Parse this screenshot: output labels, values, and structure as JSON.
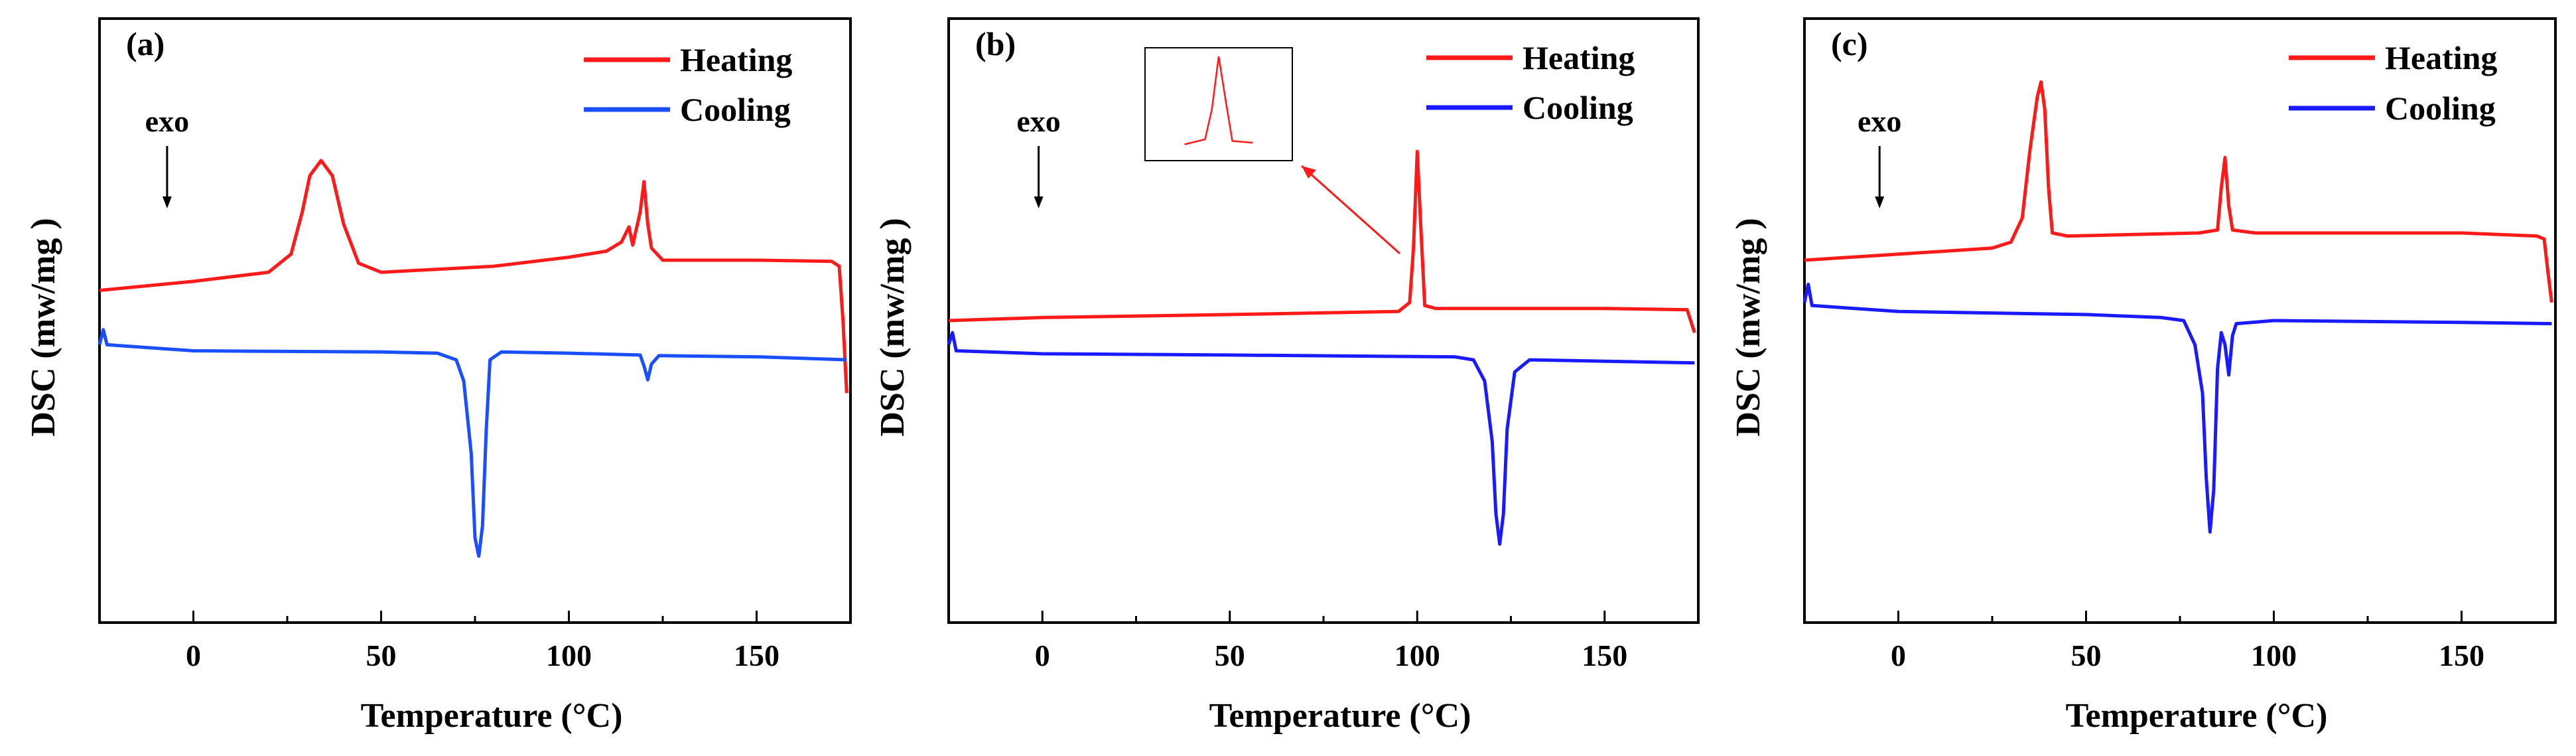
{
  "chart_data": [
    {
      "type": "line",
      "panel_label": "(a)",
      "xlabel": "Temperature (°C)",
      "ylabel": "DSC (mw/mg )",
      "xlim": [
        -25,
        175
      ],
      "ylim": [
        0,
        100
      ],
      "xticks": [
        0,
        50,
        100,
        150
      ],
      "annotation": "exo",
      "annotation_x": -7,
      "legend_position": "top-right",
      "colors": {
        "heating": "#ff1a1a",
        "cooling": "#1a4fff"
      },
      "series": [
        {
          "name": "Heating",
          "points": [
            [
              -25,
              55.0
            ],
            [
              0,
              56.5
            ],
            [
              20,
              58.0
            ],
            [
              26,
              61.0
            ],
            [
              29,
              68.0
            ],
            [
              31,
              74.0
            ],
            [
              34,
              76.5
            ],
            [
              37,
              74.0
            ],
            [
              40,
              66.0
            ],
            [
              44,
              59.5
            ],
            [
              50,
              58.0
            ],
            [
              80,
              59.0
            ],
            [
              100,
              60.5
            ],
            [
              110,
              61.5
            ],
            [
              114,
              63.0
            ],
            [
              116,
              65.5
            ],
            [
              117,
              62.5
            ],
            [
              119,
              68.0
            ],
            [
              120,
              73.0
            ],
            [
              121,
              66.0
            ],
            [
              122,
              62.0
            ],
            [
              125,
              60.0
            ],
            [
              150,
              60.0
            ],
            [
              170,
              59.8
            ],
            [
              172,
              59.0
            ],
            [
              173,
              50.0
            ],
            [
              174,
              38.0
            ]
          ]
        },
        {
          "name": "Cooling",
          "points": [
            [
              -25,
              46.0
            ],
            [
              -24,
              48.5
            ],
            [
              -23,
              46.0
            ],
            [
              0,
              45.0
            ],
            [
              50,
              44.8
            ],
            [
              65,
              44.6
            ],
            [
              70,
              43.5
            ],
            [
              72,
              40.0
            ],
            [
              74,
              28.0
            ],
            [
              75,
              14.0
            ],
            [
              76,
              11.0
            ],
            [
              77,
              16.0
            ],
            [
              78,
              32.0
            ],
            [
              79,
              43.5
            ],
            [
              82,
              44.8
            ],
            [
              100,
              44.6
            ],
            [
              119,
              44.3
            ],
            [
              120,
              42.5
            ],
            [
              121,
              40.2
            ],
            [
              122,
              42.8
            ],
            [
              124,
              44.2
            ],
            [
              150,
              44.0
            ],
            [
              174,
              43.5
            ]
          ]
        }
      ]
    },
    {
      "type": "line",
      "panel_label": "(b)",
      "xlabel": "Temperature (°C)",
      "ylabel": "DSC (mw/mg )",
      "xlim": [
        -25,
        175
      ],
      "ylim": [
        0,
        100
      ],
      "xticks": [
        0,
        50,
        100,
        150
      ],
      "annotation": "exo",
      "annotation_x": -1,
      "legend_position": "top-right",
      "colors": {
        "heating": "#ff1a1a",
        "cooling": "#1a1aff"
      },
      "series": [
        {
          "name": "Heating",
          "points": [
            [
              -25,
              50.0
            ],
            [
              0,
              50.5
            ],
            [
              50,
              51.0
            ],
            [
              95,
              51.5
            ],
            [
              98,
              53.0
            ],
            [
              99,
              62.0
            ],
            [
              100,
              78.0
            ],
            [
              101,
              65.0
            ],
            [
              102,
              52.5
            ],
            [
              105,
              52.0
            ],
            [
              150,
              52.0
            ],
            [
              172,
              51.8
            ],
            [
              174,
              48.0
            ]
          ]
        },
        {
          "name": "Cooling",
          "points": [
            [
              -25,
              46.0
            ],
            [
              -24,
              48.0
            ],
            [
              -23,
              45.0
            ],
            [
              0,
              44.5
            ],
            [
              50,
              44.3
            ],
            [
              110,
              44.0
            ],
            [
              115,
              43.5
            ],
            [
              118,
              40.0
            ],
            [
              120,
              30.0
            ],
            [
              121,
              18.0
            ],
            [
              122,
              13.0
            ],
            [
              123,
              18.0
            ],
            [
              124,
              32.0
            ],
            [
              126,
              41.5
            ],
            [
              130,
              43.5
            ],
            [
              174,
              43.0
            ]
          ]
        }
      ]
    },
    {
      "type": "line",
      "panel_label": "(c)",
      "xlabel": "Temperature (°C)",
      "ylabel": "DSC (mw/mg )",
      "xlim": [
        -25,
        175
      ],
      "ylim": [
        0,
        100
      ],
      "xticks": [
        0,
        50,
        100,
        150
      ],
      "annotation": "exo",
      "annotation_x": -5,
      "legend_position": "top-right",
      "colors": {
        "heating": "#ff1a1a",
        "cooling": "#1a1aff"
      },
      "series": [
        {
          "name": "Heating",
          "points": [
            [
              -25,
              60.0
            ],
            [
              0,
              61.0
            ],
            [
              25,
              62.0
            ],
            [
              30,
              63.0
            ],
            [
              33,
              67.0
            ],
            [
              35,
              78.0
            ],
            [
              37,
              87.0
            ],
            [
              38,
              89.5
            ],
            [
              39,
              85.0
            ],
            [
              40,
              72.0
            ],
            [
              41,
              64.5
            ],
            [
              45,
              64.0
            ],
            [
              80,
              64.5
            ],
            [
              85,
              65.0
            ],
            [
              86,
              72.0
            ],
            [
              87,
              77.0
            ],
            [
              88,
              69.0
            ],
            [
              89,
              65.0
            ],
            [
              95,
              64.5
            ],
            [
              150,
              64.5
            ],
            [
              170,
              64.0
            ],
            [
              172,
              63.5
            ],
            [
              173,
              58.0
            ],
            [
              174,
              53.0
            ]
          ]
        },
        {
          "name": "Cooling",
          "points": [
            [
              -25,
              53.0
            ],
            [
              -24,
              56.0
            ],
            [
              -23,
              52.5
            ],
            [
              0,
              51.5
            ],
            [
              50,
              51.0
            ],
            [
              70,
              50.5
            ],
            [
              76,
              50.0
            ],
            [
              79,
              46.0
            ],
            [
              81,
              38.0
            ],
            [
              82,
              24.0
            ],
            [
              83,
              15.0
            ],
            [
              84,
              22.0
            ],
            [
              85,
              42.0
            ],
            [
              86,
              48.0
            ],
            [
              87,
              46.0
            ],
            [
              88,
              41.0
            ],
            [
              89,
              47.5
            ],
            [
              90,
              49.5
            ],
            [
              100,
              50.0
            ],
            [
              150,
              49.7
            ],
            [
              174,
              49.5
            ]
          ]
        }
      ]
    }
  ]
}
